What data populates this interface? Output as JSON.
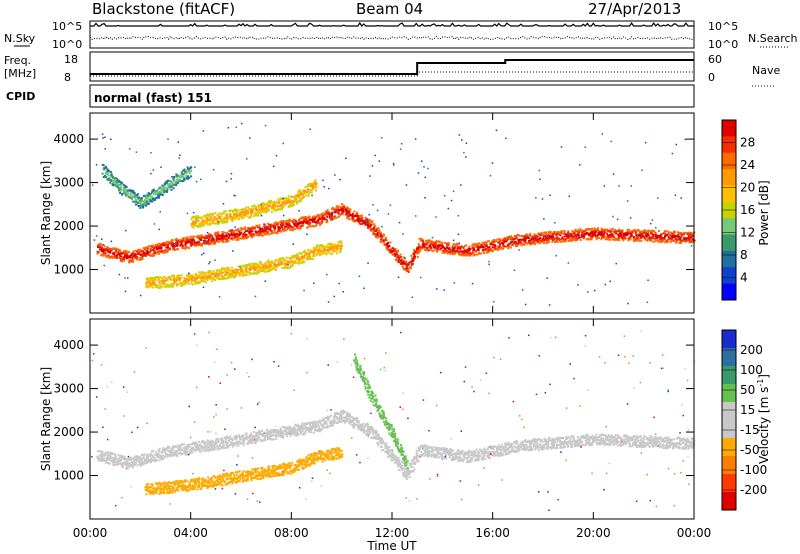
{
  "header": {
    "station": "Blackstone (fitACF)",
    "beam": "Beam 04",
    "date": "27/Apr/2013"
  },
  "top_panels": {
    "nsky_label": "N.Sky",
    "nsearch_label": "N.Search",
    "freq_label": "Freq.",
    "freq_unit": "[MHz]",
    "nave_label": "Nave",
    "cpid_label": "CPID",
    "cpid_value": "normal (fast) 151",
    "noise_ticks_left": [
      "10^5",
      "10^0"
    ],
    "noise_ticks_right": [
      "10^5",
      "10^0"
    ],
    "freq_ticks_left": [
      "18",
      "8"
    ],
    "nave_ticks_right": [
      "60",
      "0"
    ]
  },
  "colorbars": {
    "power": {
      "label": "Power [dB]",
      "ticks": [
        "28",
        "24",
        "20",
        "16",
        "12",
        "8",
        "4"
      ],
      "colors": [
        "#e00000",
        "#f03000",
        "#ff6a00",
        "#ff9a00",
        "#ffc000",
        "#c8d200",
        "#78c878",
        "#3a9a6a",
        "#1f6fa0",
        "#1040d0",
        "#0000ff"
      ]
    },
    "velocity": {
      "label_main": "Velocity [m s",
      "label_sup": "-1",
      "label_end": "]",
      "ticks": [
        "200",
        "100",
        "50",
        "15",
        "-15",
        "-50",
        "-100",
        "-200"
      ],
      "colors": [
        "#1a2bd0",
        "#2d6fa0",
        "#3a9a6a",
        "#66c050",
        "#c8c8c8",
        "#c8c8c8",
        "#ffaa00",
        "#ff7d00",
        "#ff3a00",
        "#e00000"
      ]
    }
  },
  "panels": {
    "ylabel": "Slant Range [km]",
    "yticks": [
      "4000",
      "3000",
      "2000",
      "1000"
    ],
    "xticks": [
      "00:00",
      "04:00",
      "08:00",
      "12:00",
      "16:00",
      "20:00",
      "00:00"
    ],
    "xlabel": "Time UT"
  },
  "chart_data": [
    {
      "type": "heatmap",
      "title": "Power",
      "xlabel": "",
      "ylabel": "Slant Range [km]",
      "x_range_hours": [
        0,
        24
      ],
      "ylim_km": [
        0,
        4600
      ],
      "colorbar": "Power [dB]",
      "features": [
        {
          "name": "main trace",
          "points": [
            [
              0.3,
              1500
            ],
            [
              1.5,
              1300
            ],
            [
              3,
              1550
            ],
            [
              5,
              1750
            ],
            [
              7,
              1950
            ],
            [
              9,
              2150
            ],
            [
              10,
              2400
            ],
            [
              11.2,
              2000
            ],
            [
              12,
              1450
            ],
            [
              12.6,
              1050
            ],
            [
              13.1,
              1600
            ],
            [
              15,
              1450
            ],
            [
              17,
              1700
            ],
            [
              20,
              1850
            ],
            [
              24,
              1750
            ]
          ],
          "power_dB": 26
        },
        {
          "name": "lower band",
          "points": [
            [
              2.2,
              700
            ],
            [
              4,
              800
            ],
            [
              6,
              1000
            ],
            [
              8,
              1200
            ],
            [
              9,
              1450
            ],
            [
              10,
              1550
            ]
          ],
          "power_dB": 16
        },
        {
          "name": "upper arc",
          "points": [
            [
              0.5,
              3300
            ],
            [
              1.2,
              2900
            ],
            [
              2,
              2550
            ],
            [
              3.2,
              3000
            ],
            [
              4,
              3300
            ]
          ],
          "power_dB": 12
        },
        {
          "name": "middle arc",
          "points": [
            [
              4,
              2100
            ],
            [
              6,
              2300
            ],
            [
              8,
              2600
            ],
            [
              9,
              3000
            ]
          ],
          "power_dB": 18
        }
      ]
    },
    {
      "type": "heatmap",
      "title": "Velocity",
      "xlabel": "Time UT",
      "ylabel": "Slant Range [km]",
      "x_range_hours": [
        0,
        24
      ],
      "ylim_km": [
        0,
        4600
      ],
      "colorbar": "Velocity [m s-1]",
      "features": [
        {
          "name": "main trace",
          "points": [
            [
              0.3,
              1500
            ],
            [
              1.5,
              1300
            ],
            [
              3,
              1550
            ],
            [
              5,
              1750
            ],
            [
              7,
              1950
            ],
            [
              9,
              2150
            ],
            [
              10,
              2400
            ],
            [
              11.2,
              2000
            ],
            [
              12,
              1450
            ],
            [
              12.6,
              1050
            ],
            [
              13.1,
              1600
            ],
            [
              15,
              1450
            ],
            [
              17,
              1700
            ],
            [
              20,
              1850
            ],
            [
              24,
              1750
            ]
          ],
          "velocity_ms": 0
        },
        {
          "name": "lower band",
          "points": [
            [
              2.2,
              700
            ],
            [
              4,
              800
            ],
            [
              6,
              1000
            ],
            [
              8,
              1200
            ],
            [
              9,
              1450
            ],
            [
              10,
              1550
            ]
          ],
          "velocity_ms": -60
        },
        {
          "name": "rising streak",
          "points": [
            [
              10.5,
              3700
            ],
            [
              11.2,
              2800
            ],
            [
              12,
              2000
            ],
            [
              12.6,
              1200
            ]
          ],
          "velocity_ms": 30
        }
      ]
    }
  ]
}
